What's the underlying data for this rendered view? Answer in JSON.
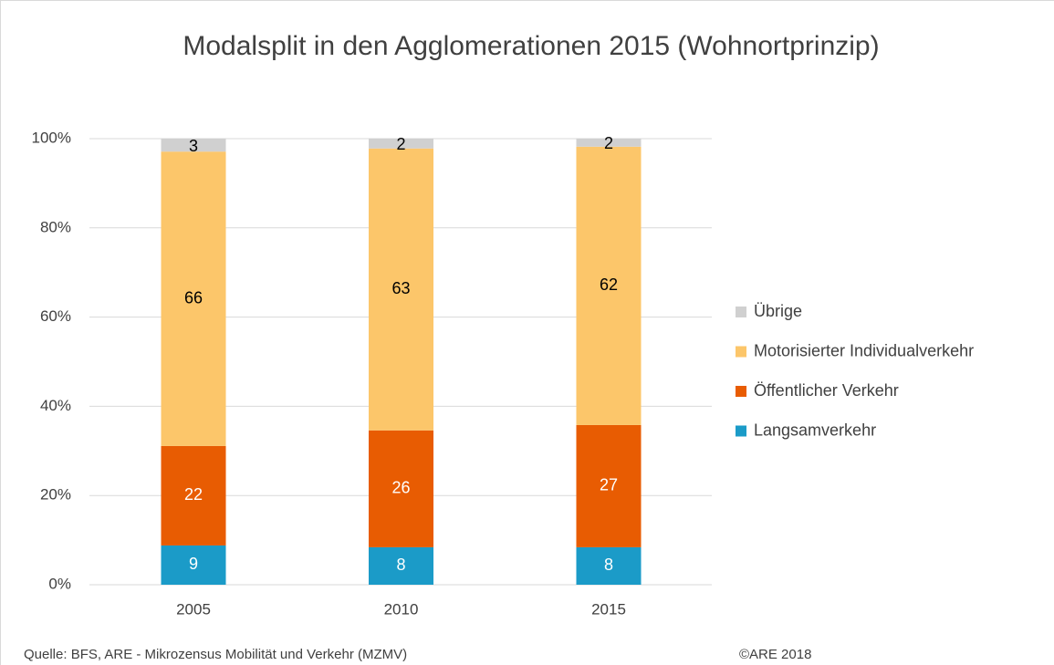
{
  "chart_data": {
    "type": "stacked_bar",
    "title": "Modalsplit in den Agglomerationen 2015 (Wohnortprinzip)",
    "categories": [
      "2005",
      "2010",
      "2015"
    ],
    "series": [
      {
        "name": "Langsamverkehr",
        "color": "#1b9bc8",
        "values": [
          8.8,
          8.4,
          8.4
        ],
        "value_labels": [
          "9",
          "8",
          "8"
        ],
        "label_color": "#ffffff"
      },
      {
        "name": "Öffentlicher Verkehr",
        "color": "#e85c02",
        "values": [
          22.3,
          26.2,
          27.4
        ],
        "value_labels": [
          "22",
          "26",
          "27"
        ],
        "label_color": "#ffffff"
      },
      {
        "name": "Motorisierter Individualverkehr",
        "color": "#fcc66a",
        "values": [
          66.0,
          63.2,
          62.4
        ],
        "value_labels": [
          "66",
          "63",
          "62"
        ],
        "label_color": "#000000"
      },
      {
        "name": "Übrige",
        "color": "#d0d0d0",
        "values": [
          2.9,
          2.2,
          1.8
        ],
        "value_labels": [
          "3",
          "2",
          "2"
        ],
        "label_color": "#000000"
      }
    ],
    "ylim": [
      0,
      100
    ],
    "yticks": [
      {
        "value": 0,
        "label": "0%"
      },
      {
        "value": 20,
        "label": "20%"
      },
      {
        "value": 40,
        "label": "40%"
      },
      {
        "value": 60,
        "label": "60%"
      },
      {
        "value": 80,
        "label": "80%"
      },
      {
        "value": 100,
        "label": "100%"
      }
    ],
    "grid": true,
    "legend": "right",
    "source": "Quelle: BFS, ARE - Mikrozensus Mobilität und Verkehr (MZMV)",
    "copyright": "©ARE 2018"
  }
}
